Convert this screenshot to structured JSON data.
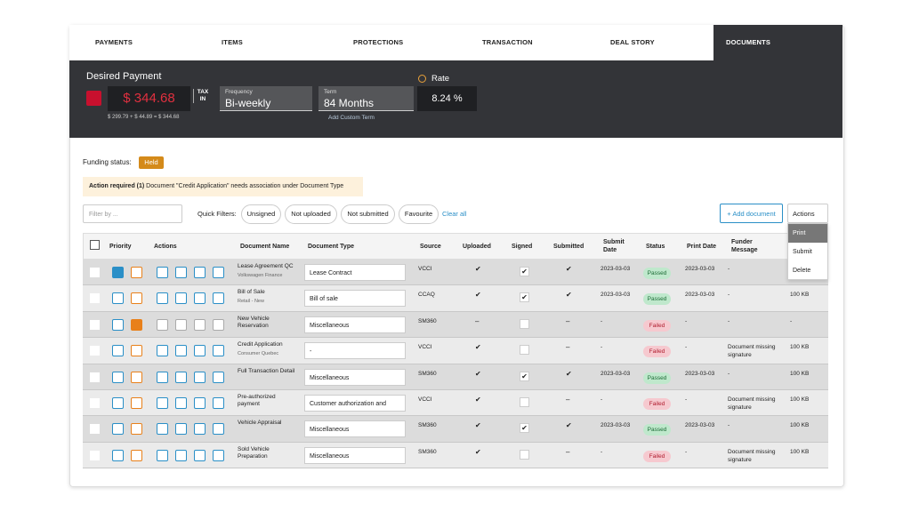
{
  "tabs": [
    "PAYMENTS",
    "ITEMS",
    "PROTECTIONS",
    "TRANSACTION",
    "DEAL STORY",
    "DOCUMENTS"
  ],
  "payment": {
    "title": "Desired Payment",
    "amount": "$ 344.68",
    "tax": "TAX IN",
    "breakdown": "$ 299.79 + $ 44.89 = $ 344.68",
    "frequency_label": "Frequency",
    "frequency": "Bi-weekly",
    "term_label": "Term",
    "term": "84 Months",
    "add_term": "Add Custom Term",
    "rate_label": "Rate",
    "rate": "8.24 %"
  },
  "funding": {
    "label": "Funding status:",
    "status": "Held"
  },
  "alert": {
    "title": "Action required (1)",
    "message": "Document \"Credit Application\" needs association under Document Type"
  },
  "toolbar": {
    "filter_placeholder": "Filter by ...",
    "quick_filters_label": "Quick Filters:",
    "chips": [
      "Unsigned",
      "Not uploaded",
      "Not submitted",
      "Favourite"
    ],
    "clear": "Clear all",
    "add": "+ Add document",
    "actions": "Actions",
    "menu": [
      "Print",
      "Submit",
      "Delete"
    ]
  },
  "table": {
    "columns": [
      "Priority",
      "Actions",
      "Document Name",
      "Document Type",
      "Source",
      "Uploaded",
      "Signed",
      "Submitted",
      "Submit Date",
      "Status",
      "Print Date",
      "Funder Message"
    ],
    "rows": [
      {
        "name": "Lease Agreement QC",
        "sub": "Volkswagen Finance",
        "type": "Lease Contract",
        "source": "VCCI",
        "uploaded": "✔",
        "signed": true,
        "submitted": "✔",
        "submit_date": "2023-03-03",
        "status": "Passed",
        "print_date": "2023-03-03",
        "message": "-",
        "size": null,
        "pinned": true,
        "favourite": false
      },
      {
        "name": "Bill of Sale",
        "sub": "Retail - New",
        "type": "Bill of sale",
        "source": "CCAQ",
        "uploaded": "✔",
        "signed": true,
        "submitted": "✔",
        "submit_date": "2023-03-03",
        "status": "Passed",
        "print_date": "2023-03-03",
        "message": "-",
        "size": "100 KB",
        "pinned": false,
        "favourite": false
      },
      {
        "name": "New Vehicle Reservation",
        "sub": null,
        "type": "Miscellaneous",
        "source": "SM360",
        "uploaded": "–",
        "signed": false,
        "submitted": "–",
        "submit_date": "-",
        "status": "Failed",
        "print_date": "-",
        "message": "-",
        "size": "-",
        "pinned": false,
        "favourite": true
      },
      {
        "name": "Credit Application",
        "sub": "Consumer Quebec",
        "type": "-",
        "source": "VCCI",
        "uploaded": "✔",
        "signed": false,
        "submitted": "–",
        "submit_date": "-",
        "status": "Failed",
        "print_date": "-",
        "message": "Document missing signature",
        "size": "100 KB",
        "pinned": false,
        "favourite": false
      },
      {
        "name": "Full Transaction Detail",
        "sub": null,
        "type": "Miscellaneous",
        "source": "SM360",
        "uploaded": "✔",
        "signed": true,
        "submitted": "✔",
        "submit_date": "2023-03-03",
        "status": "Passed",
        "print_date": "2023-03-03",
        "message": "-",
        "size": "100 KB",
        "pinned": false,
        "favourite": false
      },
      {
        "name": "Pre-authorized payment",
        "sub": null,
        "type": "Customer authorization and",
        "source": "VCCI",
        "uploaded": "✔",
        "signed": false,
        "submitted": "–",
        "submit_date": "-",
        "status": "Failed",
        "print_date": "-",
        "message": "Document missing signature",
        "size": "100 KB",
        "pinned": false,
        "favourite": false
      },
      {
        "name": "Vehicle Appraisal",
        "sub": null,
        "type": "Miscellaneous",
        "source": "SM360",
        "uploaded": "✔",
        "signed": true,
        "submitted": "✔",
        "submit_date": "2023-03-03",
        "status": "Passed",
        "print_date": "2023-03-03",
        "message": "-",
        "size": "100 KB",
        "pinned": false,
        "favourite": false
      },
      {
        "name": "Sold Vehicle Preparation",
        "sub": null,
        "type": "Miscellaneous",
        "source": "SM360",
        "uploaded": "✔",
        "signed": false,
        "submitted": "–",
        "submit_date": "-",
        "status": "Failed",
        "print_date": "-",
        "message": "Document missing signature",
        "size": "100 KB",
        "pinned": false,
        "favourite": false
      }
    ]
  }
}
